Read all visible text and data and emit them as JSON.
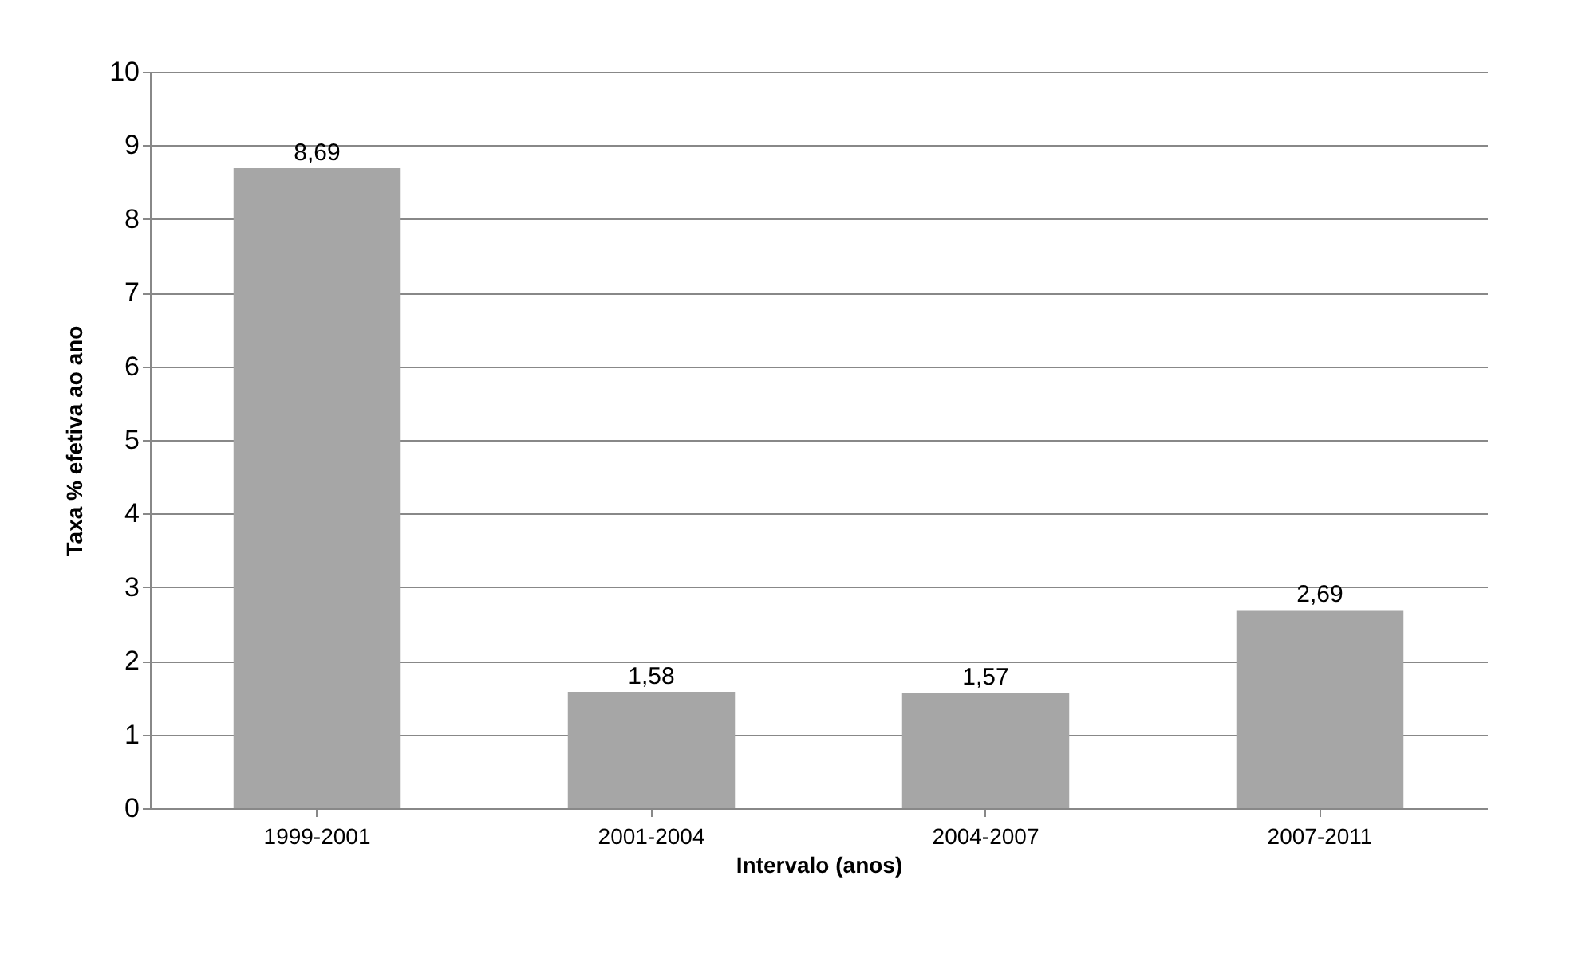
{
  "chart_data": {
    "type": "bar",
    "xlabel": "Intervalo (anos)",
    "ylabel": "Taxa % efetiva ao ano",
    "categories": [
      "1999-2001",
      "2001-2004",
      "2004-2007",
      "2007-2011"
    ],
    "values": [
      8.69,
      1.58,
      1.57,
      2.69
    ],
    "value_labels": [
      "8,69",
      "1,58",
      "1,57",
      "2,69"
    ],
    "color": "#a6a6a6",
    "ylim": [
      0,
      10
    ],
    "yticks": [
      0,
      1,
      2,
      3,
      4,
      5,
      6,
      7,
      8,
      9,
      10
    ],
    "grid": "y"
  }
}
